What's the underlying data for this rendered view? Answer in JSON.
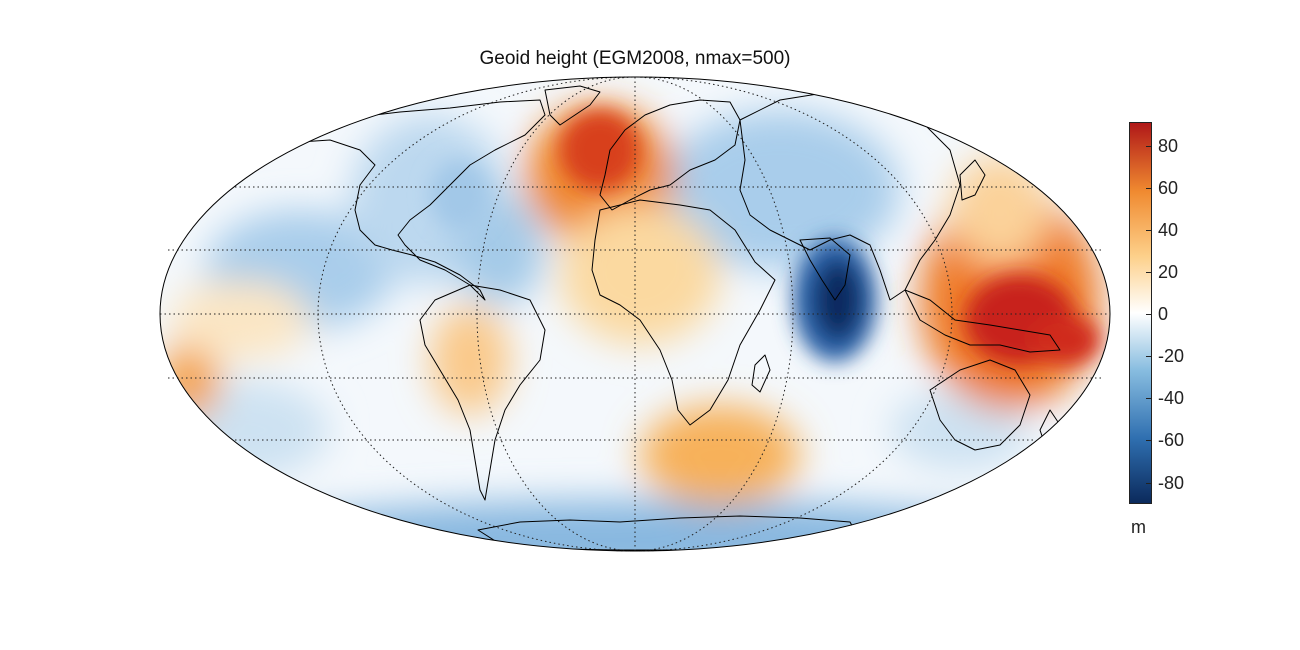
{
  "title": "Geoid height (EGM2008, nmax=500)",
  "projection": "Mollweide",
  "graticule": {
    "style": "dotted",
    "parallels_deg": [
      -60,
      -30,
      0,
      30,
      60
    ],
    "meridians_deg": [
      -180,
      -120,
      -60,
      0,
      60,
      120,
      180
    ]
  },
  "colorbar": {
    "unit": "m",
    "range": [
      -90,
      90
    ],
    "ticks": [
      "80",
      "60",
      "40",
      "20",
      "0",
      "-20",
      "-40",
      "-60",
      "-80"
    ],
    "colormap": [
      "#0b2a5c",
      "#2f6fb0",
      "#88bde0",
      "#ffffff",
      "#fdd08a",
      "#f08a30",
      "#b01818"
    ]
  },
  "colors": {
    "coastline": "#000000",
    "graticule": "#222222"
  }
}
